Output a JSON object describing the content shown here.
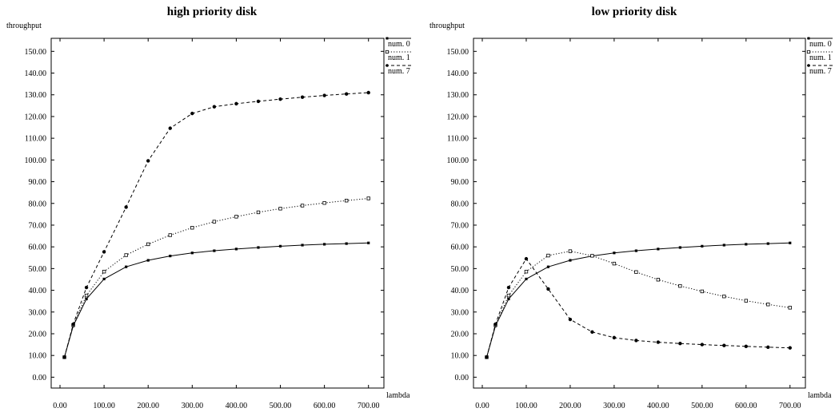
{
  "chart_data": [
    {
      "type": "line",
      "title": "high priority disk",
      "xlabel": "lambda",
      "ylabel": "throughput",
      "xlim": [
        -20,
        735
      ],
      "ylim": [
        -5,
        156
      ],
      "xticks": [
        "0.00",
        "100.00",
        "200.00",
        "300.00",
        "400.00",
        "500.00",
        "600.00",
        "700.00"
      ],
      "yticks": [
        "0.00",
        "10.00",
        "20.00",
        "30.00",
        "40.00",
        "50.00",
        "60.00",
        "70.00",
        "80.00",
        "90.00",
        "100.00",
        "110.00",
        "120.00",
        "130.00",
        "140.00",
        "150.00"
      ],
      "legend_position": "top-right outside",
      "x": [
        10,
        30,
        60,
        100,
        150,
        200,
        250,
        300,
        350,
        400,
        450,
        500,
        550,
        600,
        650,
        700
      ],
      "series": [
        {
          "name": "num. 0",
          "style": "solid",
          "marker": "dot",
          "values": [
            9.2,
            23.6,
            36.0,
            45.2,
            50.8,
            53.8,
            55.8,
            57.2,
            58.2,
            59.0,
            59.7,
            60.3,
            60.8,
            61.2,
            61.5,
            61.8
          ]
        },
        {
          "name": "num. 1",
          "style": "dotted",
          "marker": "square",
          "values": [
            9.2,
            24.0,
            37.6,
            48.6,
            56.2,
            61.2,
            65.4,
            68.8,
            71.6,
            73.9,
            75.9,
            77.6,
            79.0,
            80.2,
            81.3,
            82.3
          ]
        },
        {
          "name": "num. 7",
          "style": "dashed",
          "marker": "circle",
          "values": [
            9.2,
            24.4,
            41.3,
            57.7,
            78.3,
            99.6,
            114.6,
            121.4,
            124.5,
            125.9,
            127.0,
            128.0,
            128.9,
            129.7,
            130.4,
            131.0
          ]
        }
      ]
    },
    {
      "type": "line",
      "title": "low priority disk",
      "xlabel": "lambda",
      "ylabel": "throughput",
      "xlim": [
        -20,
        735
      ],
      "ylim": [
        -5,
        156
      ],
      "xticks": [
        "0.00",
        "100.00",
        "200.00",
        "300.00",
        "400.00",
        "500.00",
        "600.00",
        "700.00"
      ],
      "yticks": [
        "0.00",
        "10.00",
        "20.00",
        "30.00",
        "40.00",
        "50.00",
        "60.00",
        "70.00",
        "80.00",
        "90.00",
        "100.00",
        "110.00",
        "120.00",
        "130.00",
        "140.00",
        "150.00"
      ],
      "legend_position": "top-right outside",
      "x": [
        10,
        30,
        60,
        100,
        150,
        200,
        250,
        300,
        350,
        400,
        450,
        500,
        550,
        600,
        650,
        700
      ],
      "series": [
        {
          "name": "num. 0",
          "style": "solid",
          "marker": "dot",
          "values": [
            9.2,
            23.6,
            36.0,
            45.2,
            50.8,
            53.8,
            55.8,
            57.2,
            58.2,
            59.0,
            59.7,
            60.3,
            60.8,
            61.2,
            61.5,
            61.8
          ]
        },
        {
          "name": "num. 1",
          "style": "dotted",
          "marker": "square",
          "values": [
            9.2,
            24.0,
            37.6,
            48.6,
            56.0,
            58.0,
            55.9,
            52.3,
            48.4,
            44.9,
            42.0,
            39.5,
            37.2,
            35.2,
            33.5,
            32.0
          ]
        },
        {
          "name": "num. 7",
          "style": "dashed",
          "marker": "circle",
          "values": [
            9.2,
            24.4,
            41.3,
            54.5,
            40.6,
            26.6,
            20.8,
            18.2,
            16.9,
            16.1,
            15.5,
            15.0,
            14.6,
            14.2,
            13.8,
            13.5
          ]
        }
      ]
    }
  ]
}
